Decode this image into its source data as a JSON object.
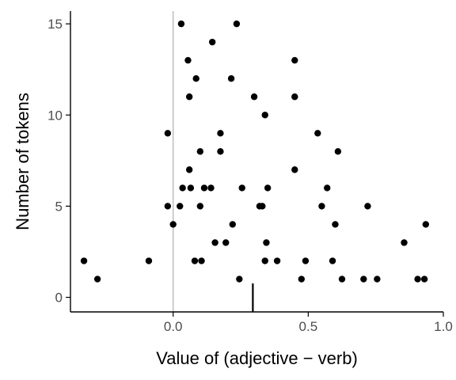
{
  "chart_data": {
    "type": "scatter",
    "title": "",
    "xlabel": "Value of (adjective − verb)",
    "ylabel": "Number of tokens",
    "xlim": [
      -0.38,
      1.0
    ],
    "ylim": [
      -0.8,
      15.7
    ],
    "x_ticks": [
      0.0,
      0.5,
      1.0
    ],
    "x_tick_labels": [
      "0.0",
      "0.5",
      "1.0"
    ],
    "y_ticks": [
      0,
      5,
      10,
      15
    ],
    "y_tick_labels": [
      "0",
      "5",
      "10",
      "15"
    ],
    "grid": false,
    "reference_line_x": 0.0,
    "marker_x": 0.295,
    "colors": {
      "points": "#000000",
      "axis": "#000000",
      "reference_line": "#bebebe",
      "tick_labels": "#4d4d4d"
    },
    "points": [
      {
        "x": -0.33,
        "y": 2
      },
      {
        "x": -0.28,
        "y": 1
      },
      {
        "x": -0.09,
        "y": 2
      },
      {
        "x": -0.02,
        "y": 9
      },
      {
        "x": -0.02,
        "y": 5
      },
      {
        "x": 0.0,
        "y": 4
      },
      {
        "x": 0.025,
        "y": 5
      },
      {
        "x": 0.03,
        "y": 15
      },
      {
        "x": 0.035,
        "y": 6
      },
      {
        "x": 0.055,
        "y": 13
      },
      {
        "x": 0.06,
        "y": 11
      },
      {
        "x": 0.06,
        "y": 7
      },
      {
        "x": 0.065,
        "y": 6
      },
      {
        "x": 0.08,
        "y": 2
      },
      {
        "x": 0.085,
        "y": 12
      },
      {
        "x": 0.1,
        "y": 8
      },
      {
        "x": 0.1,
        "y": 5
      },
      {
        "x": 0.105,
        "y": 2
      },
      {
        "x": 0.115,
        "y": 6
      },
      {
        "x": 0.14,
        "y": 6
      },
      {
        "x": 0.145,
        "y": 14
      },
      {
        "x": 0.155,
        "y": 3
      },
      {
        "x": 0.175,
        "y": 9
      },
      {
        "x": 0.175,
        "y": 8
      },
      {
        "x": 0.195,
        "y": 3
      },
      {
        "x": 0.215,
        "y": 12
      },
      {
        "x": 0.22,
        "y": 4
      },
      {
        "x": 0.235,
        "y": 15
      },
      {
        "x": 0.245,
        "y": 1
      },
      {
        "x": 0.255,
        "y": 6
      },
      {
        "x": 0.3,
        "y": 11
      },
      {
        "x": 0.32,
        "y": 5
      },
      {
        "x": 0.33,
        "y": 5
      },
      {
        "x": 0.34,
        "y": 10
      },
      {
        "x": 0.34,
        "y": 2
      },
      {
        "x": 0.345,
        "y": 3
      },
      {
        "x": 0.35,
        "y": 6
      },
      {
        "x": 0.385,
        "y": 2
      },
      {
        "x": 0.45,
        "y": 13
      },
      {
        "x": 0.45,
        "y": 11
      },
      {
        "x": 0.45,
        "y": 7
      },
      {
        "x": 0.475,
        "y": 1
      },
      {
        "x": 0.49,
        "y": 2
      },
      {
        "x": 0.535,
        "y": 9
      },
      {
        "x": 0.55,
        "y": 5
      },
      {
        "x": 0.57,
        "y": 6
      },
      {
        "x": 0.59,
        "y": 2
      },
      {
        "x": 0.6,
        "y": 4
      },
      {
        "x": 0.61,
        "y": 8
      },
      {
        "x": 0.625,
        "y": 1
      },
      {
        "x": 0.705,
        "y": 1
      },
      {
        "x": 0.72,
        "y": 5
      },
      {
        "x": 0.755,
        "y": 1
      },
      {
        "x": 0.855,
        "y": 3
      },
      {
        "x": 0.905,
        "y": 1
      },
      {
        "x": 0.93,
        "y": 1
      },
      {
        "x": 0.935,
        "y": 4
      }
    ]
  }
}
